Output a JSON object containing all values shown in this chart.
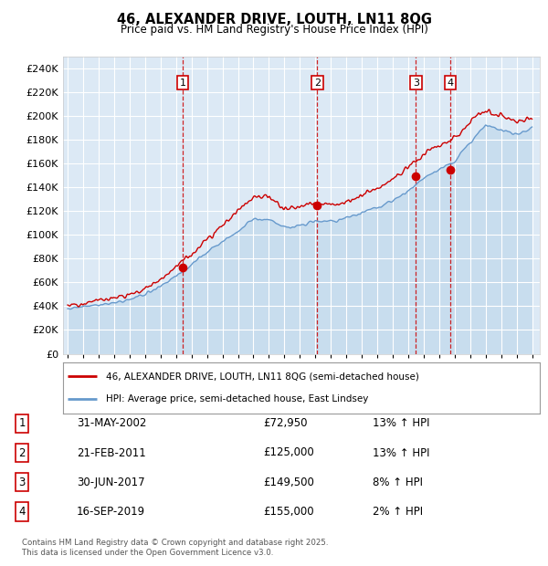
{
  "title": "46, ALEXANDER DRIVE, LOUTH, LN11 8QG",
  "subtitle": "Price paid vs. HM Land Registry's House Price Index (HPI)",
  "plot_bg_color": "#dce9f5",
  "ylim": [
    0,
    250000
  ],
  "yticks": [
    0,
    20000,
    40000,
    60000,
    80000,
    100000,
    120000,
    140000,
    160000,
    180000,
    200000,
    220000,
    240000
  ],
  "sale_dates": [
    2002.42,
    2011.13,
    2017.5,
    2019.71
  ],
  "sale_prices": [
    72950,
    125000,
    149500,
    155000
  ],
  "sale_labels": [
    "1",
    "2",
    "3",
    "4"
  ],
  "vline_color": "#cc0000",
  "legend_entries": [
    "46, ALEXANDER DRIVE, LOUTH, LN11 8QG (semi-detached house)",
    "HPI: Average price, semi-detached house, East Lindsey"
  ],
  "table_rows": [
    [
      "1",
      "31-MAY-2002",
      "£72,950",
      "13% ↑ HPI"
    ],
    [
      "2",
      "21-FEB-2011",
      "£125,000",
      "13% ↑ HPI"
    ],
    [
      "3",
      "30-JUN-2017",
      "£149,500",
      "8% ↑ HPI"
    ],
    [
      "4",
      "16-SEP-2019",
      "£155,000",
      "2% ↑ HPI"
    ]
  ],
  "footer": "Contains HM Land Registry data © Crown copyright and database right 2025.\nThis data is licensed under the Open Government Licence v3.0.",
  "red_line_color": "#cc0000",
  "blue_line_color": "#6699cc",
  "blue_fill_color": "#b8d4ea",
  "hpi_base": [
    38000,
    39500,
    41000,
    43000,
    46000,
    50000,
    57000,
    65000,
    75000,
    86000,
    94000,
    103000,
    113000,
    113000,
    106000,
    108000,
    112000,
    111000,
    114000,
    119000,
    123000,
    129000,
    137000,
    148000,
    155000,
    162000,
    178000,
    193000,
    188000,
    184000,
    190000
  ],
  "red_base": [
    41000,
    43000,
    45000,
    47000,
    50000,
    55000,
    63000,
    73000,
    84000,
    97000,
    108000,
    120000,
    132000,
    132000,
    122000,
    124000,
    127000,
    126000,
    128000,
    134000,
    140000,
    147000,
    157000,
    168000,
    175000,
    181000,
    195000,
    205000,
    200000,
    195000,
    200000
  ]
}
